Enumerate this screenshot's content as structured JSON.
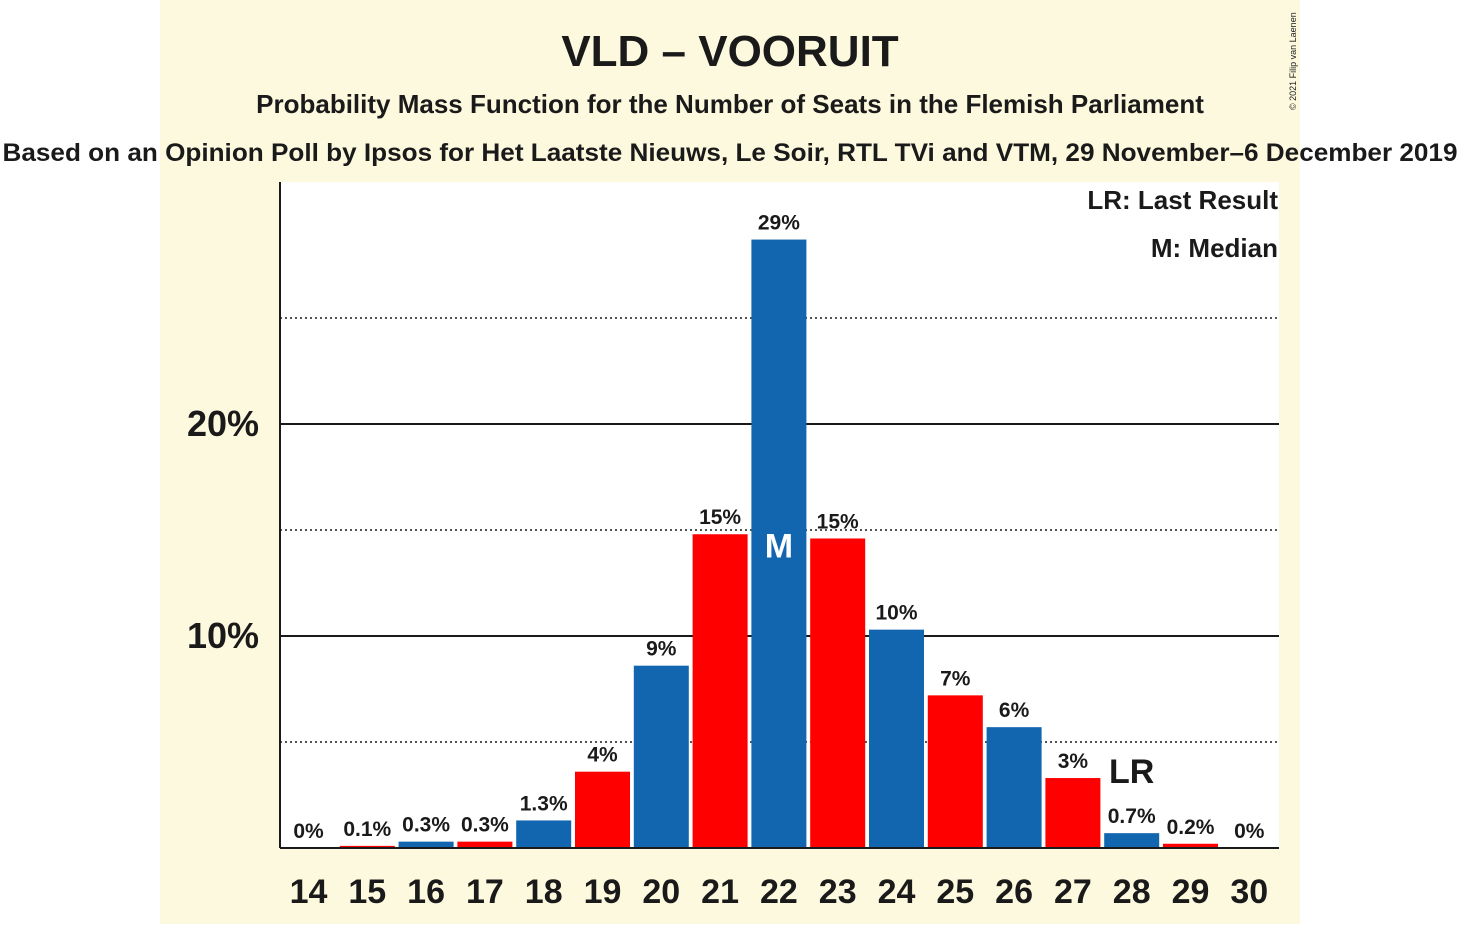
{
  "chart_data": {
    "type": "bar",
    "title": "VLD – VOORUIT",
    "subtitle": "Probability Mass Function for the Number of Seats in the Flemish Parliament",
    "source_line": "Based on an Opinion Poll by Ipsos for Het Laatste Nieuws, Le Soir, RTL TVi and VTM, 29 November–6 December 2019",
    "copyright": "© 2021 Filip van Laenen",
    "legend": {
      "placement": "top-right",
      "last_result": "LR: Last Result",
      "median": "M: Median"
    },
    "categories": [
      "14",
      "15",
      "16",
      "17",
      "18",
      "19",
      "20",
      "21",
      "22",
      "23",
      "24",
      "25",
      "26",
      "27",
      "28",
      "29",
      "30"
    ],
    "values": [
      0,
      0.1,
      0.3,
      0.3,
      1.3,
      3.6,
      8.6,
      14.8,
      28.7,
      14.6,
      10.3,
      7.2,
      5.7,
      3.3,
      0.7,
      0.2,
      0
    ],
    "value_labels": [
      "0%",
      "0.1%",
      "0.3%",
      "0.3%",
      "1.3%",
      "4%",
      "9%",
      "15%",
      "29%",
      "15%",
      "10%",
      "7%",
      "6%",
      "3%",
      "0.7%",
      "0.2%",
      "0%"
    ],
    "bar_colors": [
      "#1266b0",
      "#ff0000",
      "#1266b0",
      "#ff0000",
      "#1266b0",
      "#ff0000",
      "#1266b0",
      "#ff0000",
      "#1266b0",
      "#ff0000",
      "#1266b0",
      "#ff0000",
      "#1266b0",
      "#ff0000",
      "#1266b0",
      "#ff0000",
      "#1266b0"
    ],
    "median_seat": "22",
    "median_marker": "M",
    "last_result_seat": "28",
    "last_result_marker": "LR",
    "y_ticks": [
      {
        "value": 10,
        "label": "10%"
      },
      {
        "value": 20,
        "label": "20%"
      }
    ],
    "y_minor_gridlines": [
      5,
      15,
      25
    ],
    "ylim": [
      0,
      31.3
    ],
    "grid": true,
    "colors": {
      "background": "#fdf9de",
      "plot_background": "#ffffff",
      "blue": "#1266b0",
      "red": "#ff0000",
      "text": "#1a1a1a"
    }
  }
}
